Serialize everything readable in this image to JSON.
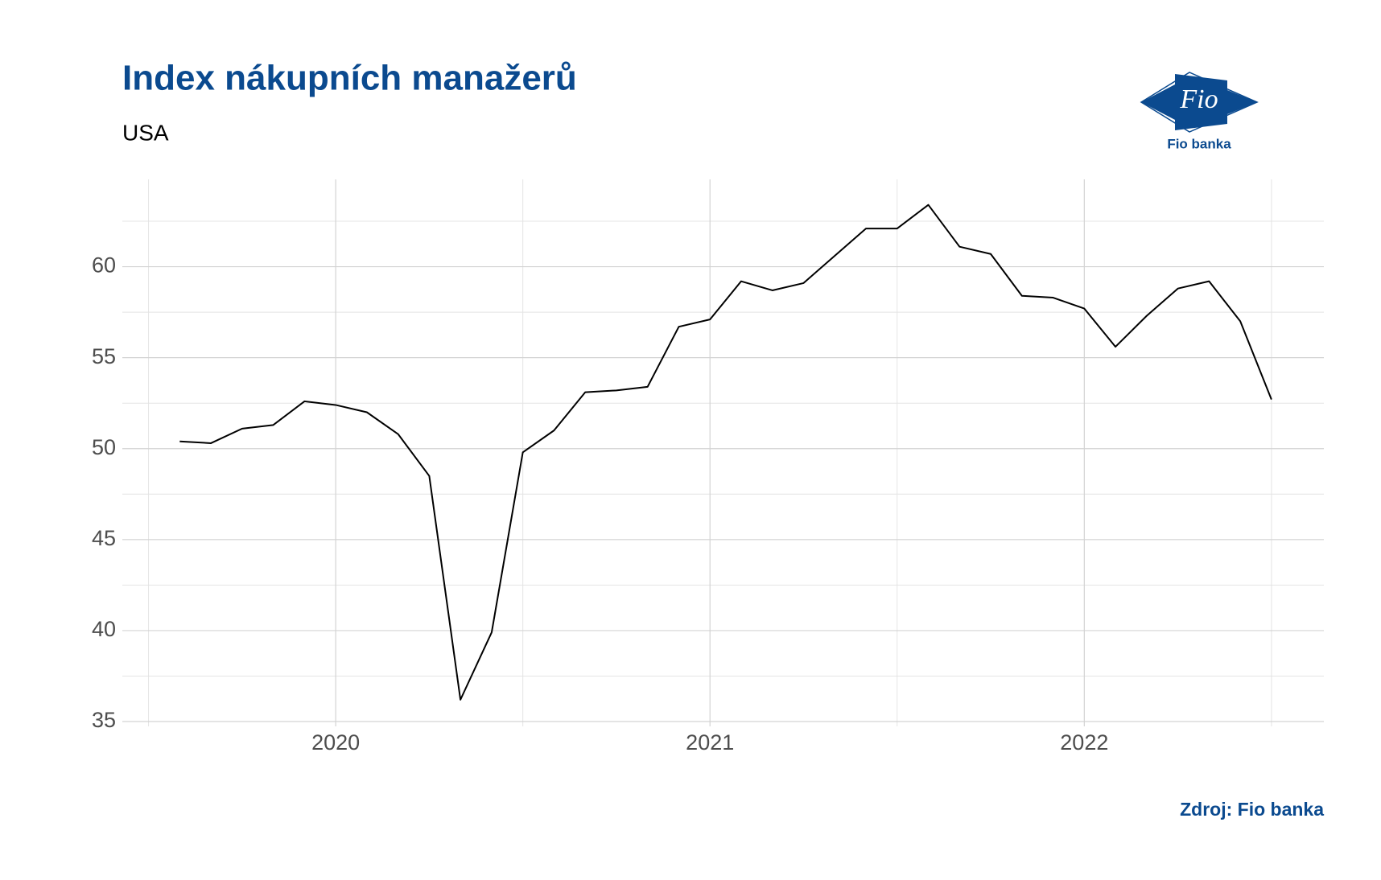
{
  "chart_data": {
    "type": "line",
    "title": "Index nákupních manažerů",
    "subtitle": "USA",
    "source": "Zdroj: Fio banka",
    "x": [
      2019.5833,
      2019.6667,
      2019.75,
      2019.8333,
      2019.9167,
      2020.0,
      2020.0833,
      2020.1667,
      2020.25,
      2020.3333,
      2020.4167,
      2020.5,
      2020.5833,
      2020.6667,
      2020.75,
      2020.8333,
      2020.9167,
      2021.0,
      2021.0833,
      2021.1667,
      2021.25,
      2021.3333,
      2021.4167,
      2021.5,
      2021.5833,
      2021.6667,
      2021.75,
      2021.8333,
      2021.9167,
      2022.0,
      2022.0833,
      2022.1667,
      2022.25,
      2022.3333,
      2022.4167,
      2022.5
    ],
    "series": [
      {
        "color": "#000000",
        "values": [
          50.4,
          50.3,
          51.1,
          51.3,
          52.6,
          52.4,
          52.0,
          50.8,
          48.5,
          36.2,
          39.9,
          49.8,
          51.0,
          53.1,
          53.2,
          53.4,
          56.7,
          57.1,
          59.2,
          58.7,
          59.1,
          60.6,
          62.1,
          62.1,
          63.4,
          61.1,
          60.7,
          58.4,
          58.3,
          57.7,
          55.6,
          57.3,
          58.8,
          59.2,
          57.0,
          52.7
        ]
      }
    ],
    "xlim": [
      2019.43,
      2022.64
    ],
    "xticks": [
      2020,
      2021,
      2022
    ],
    "ylim": [
      35,
      64.8
    ],
    "yticks": [
      35,
      40,
      45,
      50,
      55,
      60
    ],
    "grid": true
  },
  "logo": {
    "mark": "Fio",
    "name": "Fio banka"
  }
}
